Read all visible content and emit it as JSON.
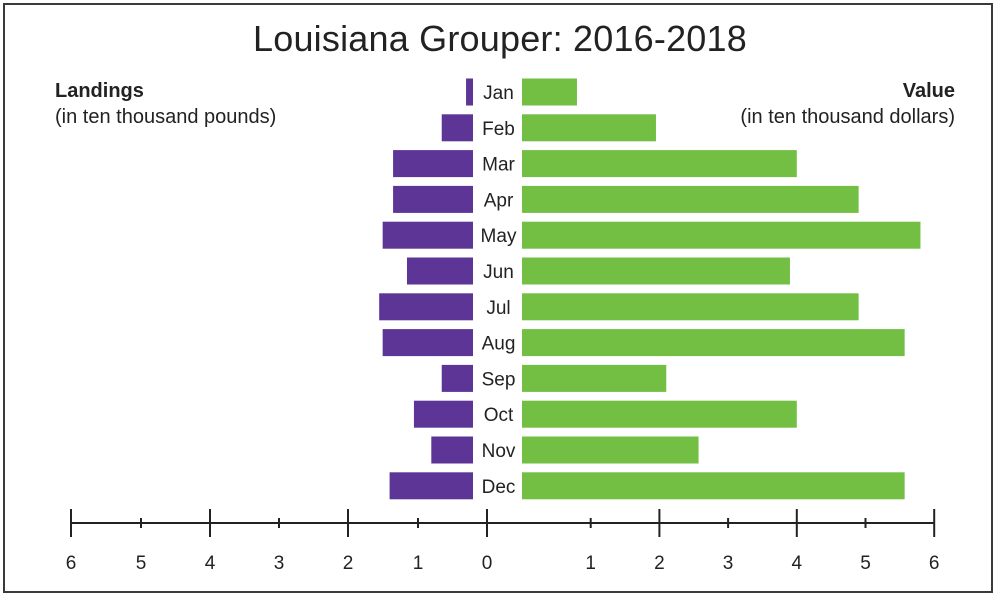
{
  "chart_data": {
    "type": "bar",
    "title": "Louisiana Grouper: 2016-2018",
    "categories": [
      "Jan",
      "Feb",
      "Mar",
      "Apr",
      "May",
      "Jun",
      "Jul",
      "Aug",
      "Sep",
      "Oct",
      "Nov",
      "Dec"
    ],
    "left_axis": {
      "label": "Landings",
      "sublabel": "(in ten thousand pounds)",
      "ticks": [
        "6",
        "5",
        "4",
        "3",
        "2",
        "1",
        "0"
      ],
      "range": [
        0,
        6
      ]
    },
    "right_axis": {
      "label": "Value",
      "sublabel": "(in ten thousand dollars)",
      "ticks": [
        "1",
        "2",
        "3",
        "4",
        "5",
        "6"
      ],
      "range": [
        0,
        6
      ]
    },
    "series": [
      {
        "name": "Landings",
        "side": "left",
        "color": "#5c3596",
        "values": [
          0.1,
          0.45,
          1.15,
          1.15,
          1.3,
          0.95,
          1.35,
          1.3,
          0.45,
          0.85,
          0.6,
          1.2
        ]
      },
      {
        "name": "Value",
        "side": "right",
        "color": "#72bf44",
        "values": [
          0.8,
          1.95,
          4.0,
          4.9,
          5.8,
          3.9,
          4.9,
          5.57,
          2.1,
          4.0,
          2.57,
          5.57
        ]
      }
    ],
    "grid": false
  }
}
